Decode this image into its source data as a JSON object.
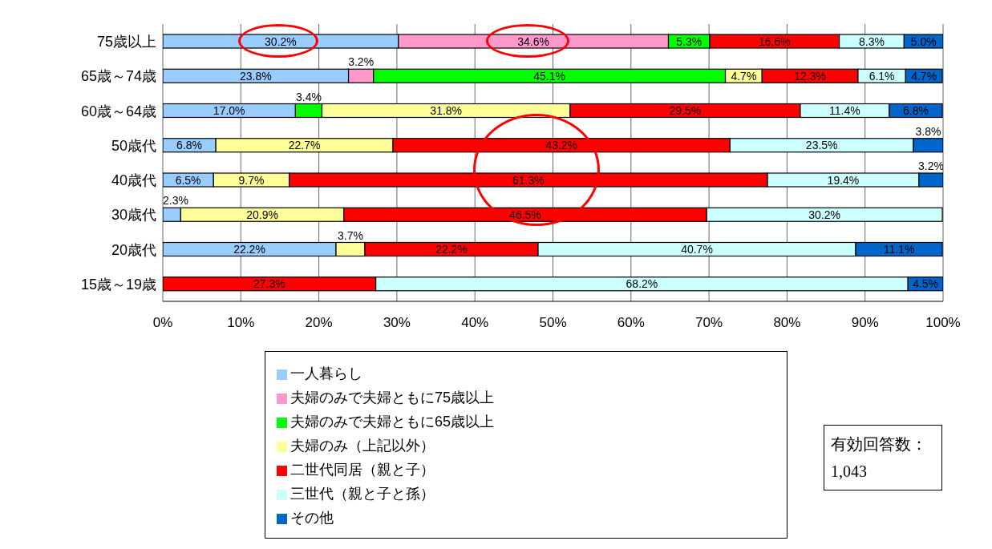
{
  "chart_data": {
    "type": "bar",
    "orientation": "horizontal",
    "stacked": true,
    "categories": [
      "75歳以上",
      "65歳～74歳",
      "60歳～64歳",
      "50歳代",
      "40歳代",
      "30歳代",
      "20歳代",
      "15歳～19歳"
    ],
    "series": [
      {
        "name": "一人暮らし",
        "color": "#99ccff",
        "values": [
          30.2,
          23.8,
          17.0,
          6.8,
          6.5,
          2.3,
          22.2,
          null
        ],
        "value_labels": [
          "30.2%",
          "23.8%",
          "17.0%",
          "6.8%",
          "6.5%",
          "2.3%",
          "22.2%",
          null
        ]
      },
      {
        "name": "夫婦のみで夫婦ともに75歳以上",
        "color": "#ff99cc",
        "values": [
          34.6,
          3.2,
          null,
          null,
          null,
          null,
          null,
          null
        ],
        "value_labels": [
          "34.6%",
          "3.2%",
          null,
          null,
          null,
          null,
          null,
          null
        ]
      },
      {
        "name": "夫婦のみで夫婦ともに65歳以上",
        "color": "#00ff00",
        "values": [
          5.3,
          45.1,
          3.4,
          null,
          null,
          null,
          null,
          null
        ],
        "value_labels": [
          "5.3%",
          "45.1%",
          "3.4%",
          null,
          null,
          null,
          null,
          null
        ]
      },
      {
        "name": "夫婦のみ（上記以外）",
        "color": "#ffff99",
        "values": [
          null,
          4.7,
          31.8,
          22.7,
          9.7,
          20.9,
          3.7,
          null
        ],
        "value_labels": [
          null,
          "4.7%",
          "31.8%",
          "22.7%",
          "9.7%",
          "20.9%",
          "3.7%",
          null
        ]
      },
      {
        "name": "二世代同居（親と子）",
        "color": "#ff0000",
        "values": [
          16.6,
          12.3,
          29.5,
          43.2,
          61.3,
          46.5,
          22.2,
          27.3
        ],
        "value_labels": [
          "16.6%",
          "12.3%",
          "29.5%",
          "43.2%",
          "61.3%",
          "46.5%",
          "22.2%",
          "27.3%"
        ]
      },
      {
        "name": "三世代（親と子と孫）",
        "color": "#ccffff",
        "values": [
          8.3,
          6.1,
          11.4,
          23.5,
          19.4,
          30.2,
          40.7,
          68.2
        ],
        "value_labels": [
          "8.3%",
          "6.1%",
          "11.4%",
          "23.5%",
          "19.4%",
          "30.2%",
          "40.7%",
          "68.2%"
        ]
      },
      {
        "name": "その他",
        "color": "#0066cc",
        "values": [
          5.0,
          4.7,
          6.8,
          3.8,
          3.2,
          null,
          11.1,
          4.5
        ],
        "value_labels": [
          "5.0%",
          "4.7%",
          "6.8%",
          "3.8%",
          "3.2%",
          null,
          "11.1%",
          "4.5%"
        ]
      }
    ],
    "xlim": [
      0,
      100
    ],
    "xticks": [
      {
        "value": 0,
        "label": "0%"
      },
      {
        "value": 10,
        "label": "10%"
      },
      {
        "value": 20,
        "label": "20%"
      },
      {
        "value": 30,
        "label": "30%"
      },
      {
        "value": 40,
        "label": "40%"
      },
      {
        "value": 50,
        "label": "50%"
      },
      {
        "value": 60,
        "label": "60%"
      },
      {
        "value": 70,
        "label": "70%"
      },
      {
        "value": 80,
        "label": "80%"
      },
      {
        "value": 90,
        "label": "90%"
      },
      {
        "value": 100,
        "label": "100%"
      }
    ],
    "grid": "x",
    "legend": "bottom",
    "annotations": [
      "有効回答数：1,043"
    ]
  }
}
